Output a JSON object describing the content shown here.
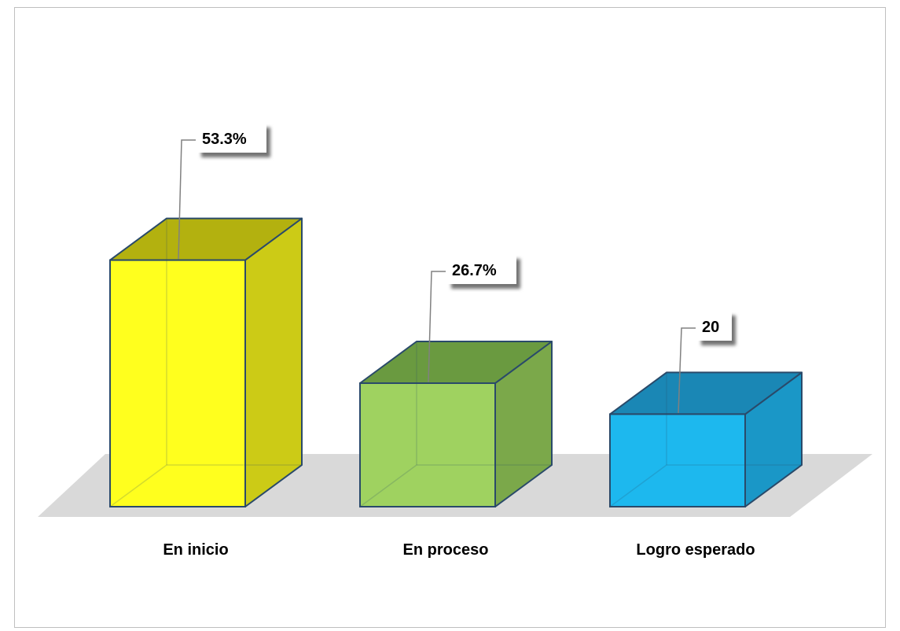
{
  "chart_data": {
    "type": "bar",
    "categories": [
      "En inicio",
      "En proceso",
      "Logro esperado"
    ],
    "values": [
      53.3,
      26.7,
      20
    ],
    "data_labels": [
      "53.3%",
      "26.7%",
      "20"
    ],
    "ylim": [
      0,
      100
    ],
    "grid": false,
    "legend": "none",
    "colors": {
      "bars": [
        "#ffff1e",
        "#9fd260",
        "#1db8ee"
      ],
      "bar_sides": [
        "#cccb16",
        "#7ba84a",
        "#1a97c7"
      ],
      "bar_tops": [
        "#b3b10f",
        "#6a9a40",
        "#1a87b5"
      ],
      "bar_edge": "#2a4a6a",
      "floor": "#d9d9d9",
      "frame": "#bfbfbf"
    }
  }
}
